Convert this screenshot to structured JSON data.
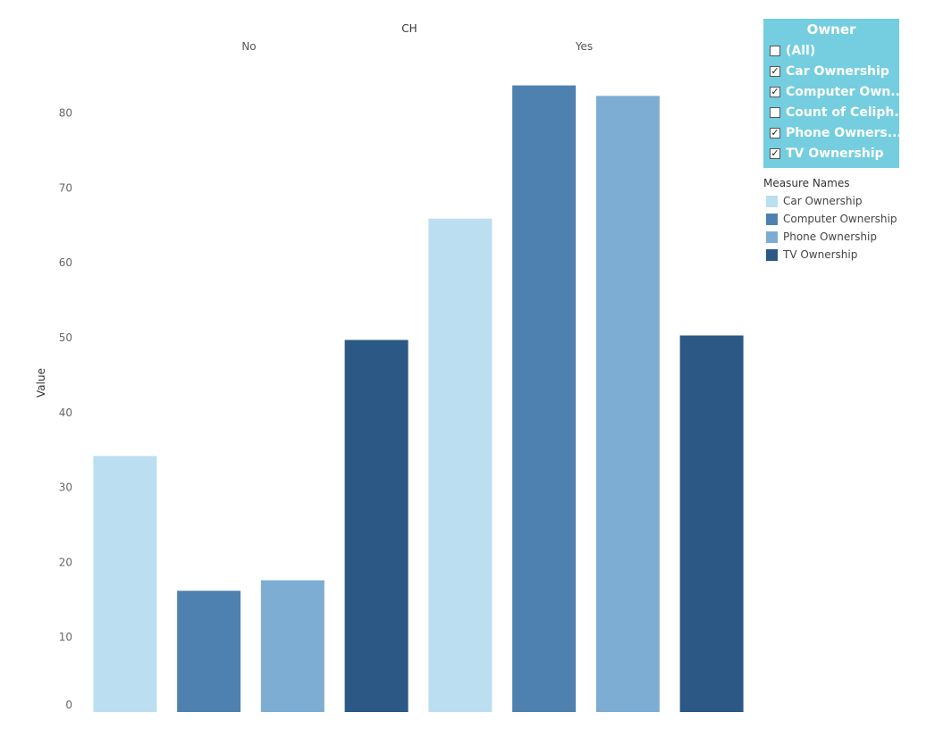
{
  "chart_data": {
    "type": "bar",
    "column_header_title": "CH",
    "column_groups": [
      "No",
      "Yes"
    ],
    "ylabel": "Value",
    "ylim": [
      0,
      85
    ],
    "y_ticks": [
      0,
      10,
      20,
      30,
      40,
      50,
      60,
      70,
      80
    ],
    "grid": false,
    "legend_position": "right",
    "series": [
      {
        "name": "Car Ownership",
        "color": "#bbdef1",
        "values": [
          34.2,
          65.9
        ]
      },
      {
        "name": "Computer Ownership",
        "color": "#4f81b0",
        "values": [
          16.2,
          83.7
        ]
      },
      {
        "name": "Phone Ownership",
        "color": "#7eadd4",
        "values": [
          17.6,
          82.3
        ]
      },
      {
        "name": "TV Ownership",
        "color": "#2b5885",
        "values": [
          49.7,
          50.3
        ]
      }
    ]
  },
  "filter": {
    "title": "Owner",
    "background": "#74cedf",
    "items": [
      {
        "label": "(All)",
        "checked": false
      },
      {
        "label": "Car Ownership",
        "checked": true
      },
      {
        "label": "Computer Own...",
        "checked": true
      },
      {
        "label": "Count of Celiph...",
        "checked": false
      },
      {
        "label": "Phone Owners...",
        "checked": true
      },
      {
        "label": "TV Ownership",
        "checked": true
      }
    ]
  },
  "legend": {
    "title": "Measure Names",
    "items": [
      {
        "label": "Car Ownership",
        "color": "#bbdef1"
      },
      {
        "label": "Computer Ownership",
        "color": "#4f81b0"
      },
      {
        "label": "Phone Ownership",
        "color": "#7eadd4"
      },
      {
        "label": "TV Ownership",
        "color": "#2b5885"
      }
    ]
  }
}
